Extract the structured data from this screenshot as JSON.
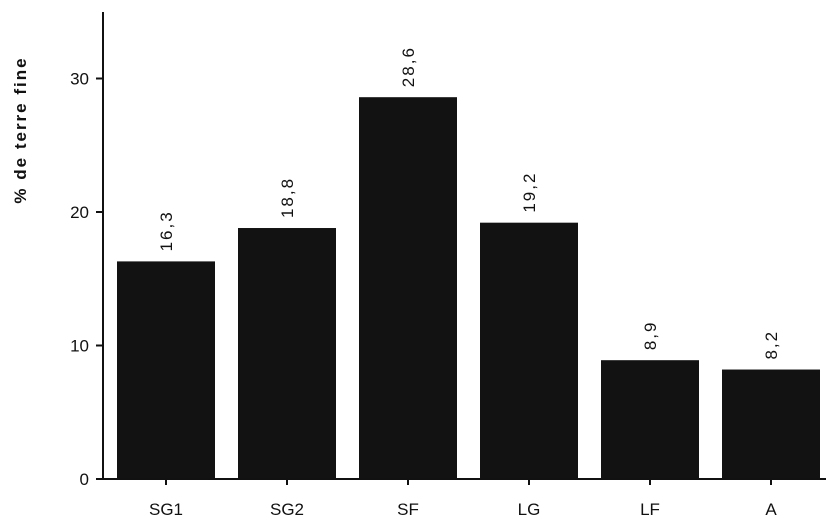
{
  "chart_data": {
    "type": "bar",
    "title": "",
    "xlabel": "",
    "ylabel": "% de terre fine",
    "categories": [
      "SG1",
      "SG2",
      "SF",
      "LG",
      "LF",
      "A"
    ],
    "values": [
      16.3,
      18.8,
      28.6,
      19.2,
      8.9,
      8.2
    ],
    "value_labels": [
      "16,3",
      "18,8",
      "28,6",
      "19,2",
      "8,9",
      "8,2"
    ],
    "ylim": [
      0,
      35
    ],
    "yticks": [
      0,
      10,
      20,
      30
    ],
    "ytick_labels": [
      "0",
      "10",
      "20",
      "30"
    ],
    "grid": false,
    "legend": "none",
    "bar_color": "#121212"
  }
}
